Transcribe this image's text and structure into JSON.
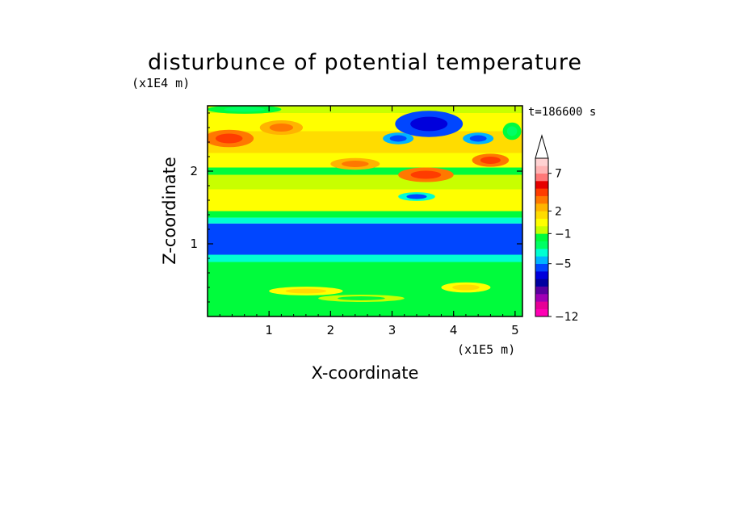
{
  "chart_data": {
    "type": "heatmap",
    "title": "disturbunce of potential temperature",
    "ylabel": "Z-coordinate",
    "xlabel": "X-coordinate",
    "x_unit": "(x1E5 m)",
    "y_unit": "(x1E4 m)",
    "time_label": "t=186600 s",
    "xlim": [
      0,
      5.12
    ],
    "ylim": [
      0,
      2.9
    ],
    "x_ticks": [
      1,
      2,
      3,
      4,
      5
    ],
    "y_ticks": [
      1,
      2
    ],
    "colorbar": {
      "levels": [
        -12,
        -11,
        -10,
        -9,
        -8,
        -7,
        -6,
        -5,
        -4,
        -3,
        -2,
        -1,
        0,
        1,
        2,
        3,
        4,
        5,
        6,
        7,
        8,
        9,
        10
      ],
      "tick_labels": [
        "-12",
        "-5",
        "-1",
        "2",
        "7"
      ],
      "tick_values": [
        -12,
        -5,
        -1,
        2,
        7
      ],
      "colors": [
        "#ff00b4",
        "#e60096",
        "#a000b4",
        "#5a00a0",
        "#0000a0",
        "#0000dc",
        "#0046ff",
        "#00b4ff",
        "#00ffd2",
        "#00ff64",
        "#00fc3c",
        "#c8ff00",
        "#ffff00",
        "#ffdc00",
        "#ffb400",
        "#ff7800",
        "#ff3c00",
        "#e60000",
        "#ff7878",
        "#ffb4b4",
        "#ffd2d2",
        "#ffffff"
      ],
      "extend_max": true
    },
    "bands": [
      {
        "z": [
          0.0,
          0.1
        ],
        "value": -1.5
      },
      {
        "z": [
          0.1,
          0.3
        ],
        "value": -2.0
      },
      {
        "z": [
          0.3,
          0.5
        ],
        "value": -1.2
      },
      {
        "z": [
          0.5,
          0.75
        ],
        "value": -2.0
      },
      {
        "z": [
          0.75,
          0.85
        ],
        "value": -3.5
      },
      {
        "z": [
          0.85,
          1.28
        ],
        "value": -5.2
      },
      {
        "z": [
          1.28,
          1.36
        ],
        "value": -3.5
      },
      {
        "z": [
          1.36,
          1.45
        ],
        "value": -2.0
      },
      {
        "z": [
          1.45,
          1.65
        ],
        "value": 0.5
      },
      {
        "z": [
          1.65,
          1.75
        ],
        "value": 0.2
      },
      {
        "z": [
          1.75,
          1.95
        ],
        "value": -0.3
      },
      {
        "z": [
          1.95,
          2.05
        ],
        "value": -1.2
      },
      {
        "z": [
          2.05,
          2.25
        ],
        "value": 0.6
      },
      {
        "z": [
          2.25,
          2.55
        ],
        "value": 1.2
      },
      {
        "z": [
          2.55,
          2.8
        ],
        "value": 0.4
      },
      {
        "z": [
          2.8,
          2.9
        ],
        "value": -1.0
      }
    ],
    "features": [
      {
        "x": 0.35,
        "z": 2.45,
        "rx": 0.4,
        "rz": 0.12,
        "value": 3.2
      },
      {
        "x": 1.2,
        "z": 2.6,
        "rx": 0.35,
        "rz": 0.1,
        "value": 2.2
      },
      {
        "x": 3.6,
        "z": 2.65,
        "rx": 0.55,
        "rz": 0.18,
        "value": -5.5
      },
      {
        "x": 3.1,
        "z": 2.45,
        "rx": 0.25,
        "rz": 0.08,
        "value": -4.5
      },
      {
        "x": 4.4,
        "z": 2.45,
        "rx": 0.25,
        "rz": 0.08,
        "value": -4.5
      },
      {
        "x": 4.6,
        "z": 2.15,
        "rx": 0.3,
        "rz": 0.09,
        "value": 3.0
      },
      {
        "x": 3.55,
        "z": 1.95,
        "rx": 0.45,
        "rz": 0.1,
        "value": 3.0
      },
      {
        "x": 3.4,
        "z": 1.65,
        "rx": 0.3,
        "rz": 0.06,
        "value": -4.0
      },
      {
        "x": 4.95,
        "z": 2.55,
        "rx": 0.15,
        "rz": 0.12,
        "value": -1.2
      },
      {
        "x": 0.6,
        "z": 2.85,
        "rx": 0.6,
        "rz": 0.06,
        "value": -1.5
      },
      {
        "x": 2.4,
        "z": 2.1,
        "rx": 0.4,
        "rz": 0.08,
        "value": 2.2
      },
      {
        "x": 4.2,
        "z": 0.4,
        "rx": 0.4,
        "rz": 0.07,
        "value": 0.5
      },
      {
        "x": 1.6,
        "z": 0.35,
        "rx": 0.6,
        "rz": 0.06,
        "value": 0.4
      },
      {
        "x": 2.5,
        "z": 0.25,
        "rx": 0.7,
        "rz": 0.05,
        "value": -0.5
      }
    ]
  }
}
